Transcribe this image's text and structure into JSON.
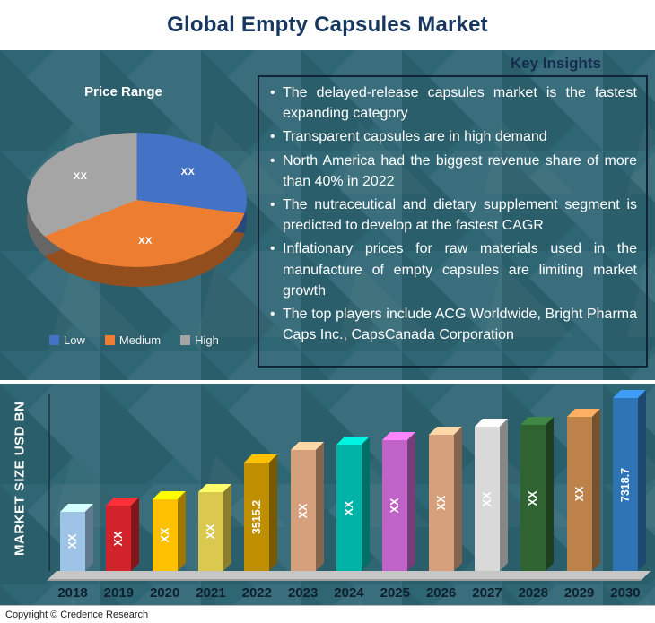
{
  "header": {
    "title": "Global Empty Capsules Market"
  },
  "key_insights": {
    "heading": "Key Insights",
    "bullets": [
      "The delayed-release capsules market is the fastest expanding category",
      "Transparent capsules are in high demand",
      "North America had the biggest revenue share of more than 40% in 2022",
      "The nutraceutical and dietary supplement segment is predicted to develop at the fastest CAGR",
      "Inflationary prices for raw materials used in the manufacture of empty capsules are limiting market growth",
      "The top players include ACG Worldwide, Bright Pharma Caps Inc., CapsCanada Corporation"
    ]
  },
  "pie_chart": {
    "title": "Price Range",
    "slices": [
      {
        "name": "Low",
        "color": "#4472C4",
        "pct": 27,
        "value_label": "XX"
      },
      {
        "name": "Medium",
        "color": "#ED7D31",
        "pct": 42,
        "value_label": "XX"
      },
      {
        "name": "High",
        "color": "#A5A5A5",
        "pct": 31,
        "value_label": "XX"
      }
    ]
  },
  "bar_chart": {
    "ylabel": "MARKET SIZE USD BN",
    "bars": [
      {
        "year": "2018",
        "label": "XX",
        "color": "#9DC3E6",
        "height": 66
      },
      {
        "year": "2019",
        "label": "XX",
        "color": "#D2232A",
        "height": 73
      },
      {
        "year": "2020",
        "label": "XX",
        "color": "#FFC000",
        "height": 80
      },
      {
        "year": "2021",
        "label": "XX",
        "color": "#DBC94F",
        "height": 88
      },
      {
        "year": "2022",
        "label": "3515.2",
        "color": "#BF8F00",
        "height": 121
      },
      {
        "year": "2023",
        "label": "XX",
        "color": "#D6A07C",
        "height": 135
      },
      {
        "year": "2024",
        "label": "XX",
        "color": "#00B3A6",
        "height": 141
      },
      {
        "year": "2025",
        "label": "XX",
        "color": "#BF63C6",
        "height": 146
      },
      {
        "year": "2026",
        "label": "XX",
        "color": "#D6A07C",
        "height": 152
      },
      {
        "year": "2027",
        "label": "XX",
        "color": "#D9D9D9",
        "height": 161
      },
      {
        "year": "2028",
        "label": "XX",
        "color": "#2F6432",
        "height": 163
      },
      {
        "year": "2029",
        "label": "XX",
        "color": "#BD8249",
        "height": 172
      },
      {
        "year": "2030",
        "label": "7318.7",
        "color": "#2E74B5",
        "height": 193
      }
    ]
  },
  "footer": {
    "copyright": "Copyright © Credence Research"
  },
  "chart_data": [
    {
      "type": "pie",
      "title": "Price Range",
      "labels": [
        "Low",
        "Medium",
        "High"
      ],
      "values": [
        27,
        42,
        31
      ],
      "data_labels": [
        "XX",
        "XX",
        "XX"
      ],
      "colors": [
        "#4472C4",
        "#ED7D31",
        "#A5A5A5"
      ],
      "legend_position": "bottom",
      "note": "Slice values are masked as XX in the image; percentages estimated from slice angles"
    },
    {
      "type": "bar",
      "title": "",
      "xlabel": "",
      "ylabel": "MARKET SIZE USD BN",
      "categories": [
        "2018",
        "2019",
        "2020",
        "2021",
        "2022",
        "2023",
        "2024",
        "2025",
        "2026",
        "2027",
        "2028",
        "2029",
        "2030"
      ],
      "values": [
        null,
        null,
        null,
        null,
        3515.2,
        null,
        null,
        null,
        null,
        null,
        null,
        null,
        7318.7
      ],
      "data_labels": [
        "XX",
        "XX",
        "XX",
        "XX",
        "3515.2",
        "XX",
        "XX",
        "XX",
        "XX",
        "XX",
        "XX",
        "XX",
        "7318.7"
      ],
      "bar_colors": [
        "#9DC3E6",
        "#D2232A",
        "#FFC000",
        "#DBC94F",
        "#BF8F00",
        "#D6A07C",
        "#00B3A6",
        "#BF63C6",
        "#D6A07C",
        "#D9D9D9",
        "#2F6432",
        "#BD8249",
        "#2E74B5"
      ],
      "grid": false,
      "note": "Most yearly values are masked as XX; bars rise monotonically from 2018 to 2030"
    }
  ]
}
